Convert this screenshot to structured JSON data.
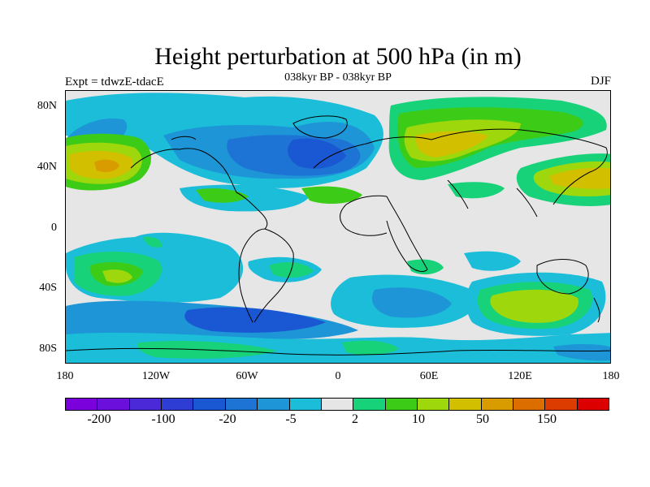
{
  "title": "Height perturbation at 500 hPa (in m)",
  "left_label": "Expt = tdwzE-tdacE",
  "center_label": "038kyr BP - 038kyr BP",
  "right_label": "DJF",
  "y_axis_labels": [
    "80N",
    "40N",
    "0",
    "40S",
    "80S"
  ],
  "x_axis_labels": [
    "180",
    "120W",
    "60W",
    "0",
    "60E",
    "120E",
    "180"
  ],
  "colorbar": {
    "labels": [
      "-200",
      "-100",
      "-20",
      "-5",
      "2",
      "10",
      "50",
      "150"
    ],
    "colors": [
      "#7a00dc",
      "#6a0fdc",
      "#4b28d8",
      "#2e3ed4",
      "#1a57d3",
      "#1e74d5",
      "#1d95d6",
      "#1bbdd9",
      "#e6e6e6",
      "#18d27a",
      "#3ccc18",
      "#9ed70c",
      "#d2c000",
      "#d99c00",
      "#dc6e00",
      "#dc3c00",
      "#dc0000"
    ]
  },
  "chart_data": {
    "type": "heatmap",
    "title": "Height perturbation at 500 hPa (in m)",
    "subtitle_left": "Expt = tdwzE-tdacE",
    "subtitle_center": "038kyr BP - 038kyr BP",
    "subtitle_right": "DJF",
    "x_range": [
      -180,
      180
    ],
    "y_range": [
      -90,
      90
    ],
    "x_ticks": [
      "180",
      "120W",
      "60W",
      "0",
      "60E",
      "120E",
      "180"
    ],
    "y_ticks": [
      "80N",
      "40N",
      "0",
      "40S",
      "80S"
    ],
    "colorbar_levels": [
      -200,
      -100,
      -20,
      -5,
      2,
      10,
      50,
      150
    ],
    "regions": [
      {
        "feature": "positive anomaly",
        "lon": -155,
        "lat": 40,
        "approx_m": 50
      },
      {
        "feature": "positive anomaly",
        "lon": 65,
        "lat": 60,
        "approx_m": 50
      },
      {
        "feature": "positive anomaly",
        "lon": 165,
        "lat": 38,
        "approx_m": 30
      },
      {
        "feature": "positive anomaly",
        "lon": -140,
        "lat": -35,
        "approx_m": 30
      },
      {
        "feature": "positive anomaly",
        "lon": 125,
        "lat": -50,
        "approx_m": 30
      },
      {
        "feature": "negative anomaly",
        "lon": -20,
        "lat": 60,
        "approx_m": -20
      },
      {
        "feature": "negative anomaly",
        "lon": -85,
        "lat": 45,
        "approx_m": -20
      },
      {
        "feature": "negative anomaly",
        "lon": -30,
        "lat": -55,
        "approx_m": -10
      }
    ]
  }
}
